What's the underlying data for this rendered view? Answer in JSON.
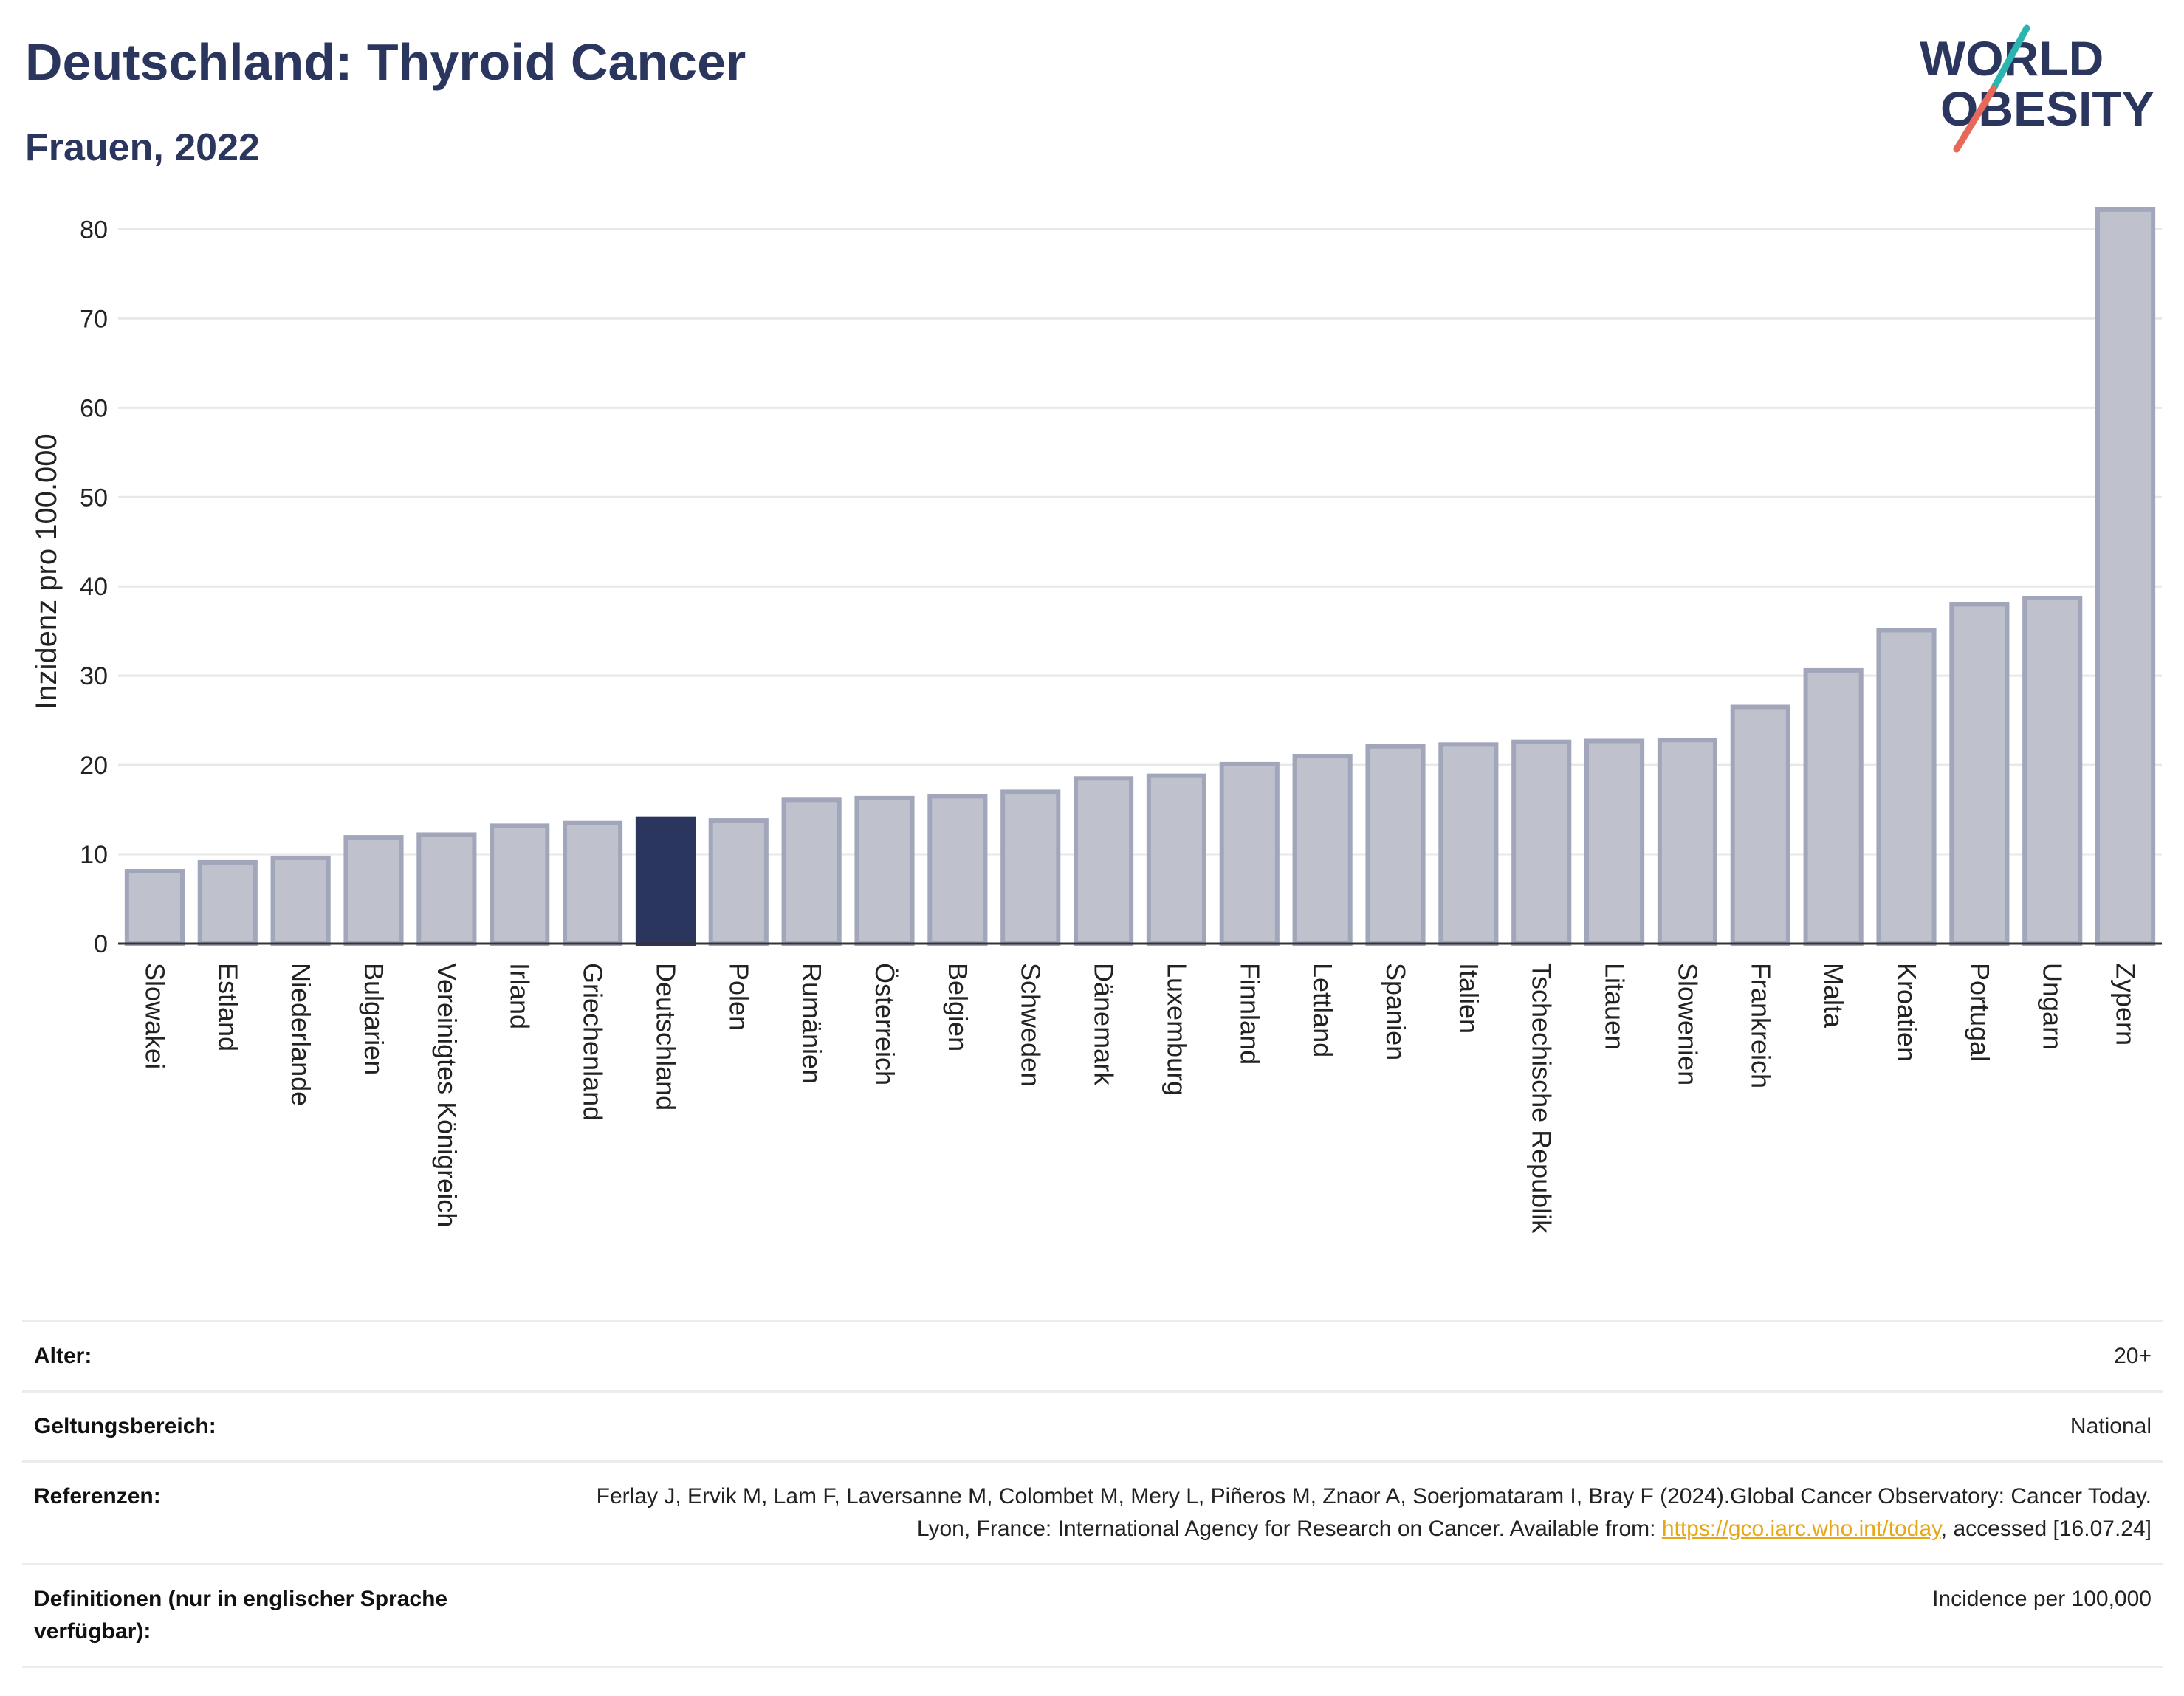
{
  "header": {
    "title": "Deutschland: Thyroid Cancer",
    "subtitle": "Frauen, 2022"
  },
  "logo": {
    "line1": "WORLD",
    "line2": "OBESITY"
  },
  "chart_data": {
    "type": "bar",
    "ylabel": "Inzidenz pro 100.000",
    "ylim": [
      0,
      85
    ],
    "yticks": [
      0,
      10,
      20,
      30,
      40,
      50,
      60,
      70,
      80
    ],
    "grid": true,
    "highlight": "Deutschland",
    "categories": [
      "Slowakei",
      "Estland",
      "Niederlande",
      "Bulgarien",
      "Vereinigtes Königreich",
      "Irland",
      "Griechenland",
      "Deutschland",
      "Polen",
      "Rumänien",
      "Österreich",
      "Belgien",
      "Schweden",
      "Dänemark",
      "Luxemburg",
      "Finnland",
      "Lettland",
      "Spanien",
      "Italien",
      "Tschechische Republik",
      "Litauen",
      "Slowenien",
      "Frankreich",
      "Malta",
      "Kroatien",
      "Portugal",
      "Ungarn",
      "Zypern"
    ],
    "values": [
      8.1,
      9.1,
      9.6,
      11.9,
      12.2,
      13.2,
      13.5,
      14.0,
      13.8,
      16.1,
      16.3,
      16.5,
      17.0,
      18.5,
      18.8,
      20.1,
      21.0,
      22.1,
      22.3,
      22.6,
      22.7,
      22.8,
      26.5,
      30.6,
      35.1,
      38.0,
      38.7,
      82.2
    ],
    "colors": {
      "bar": "#bfc1cd",
      "bar_stroke": "#a2a6bb",
      "highlight": "#2b365f",
      "axis": "#333333",
      "grid": "#e8e8e8"
    }
  },
  "info": {
    "rows": [
      {
        "label": "Alter:",
        "value": "20+"
      },
      {
        "label": "Geltungsbereich:",
        "value": "National"
      },
      {
        "label": "Referenzen:",
        "value_before": "Ferlay J, Ervik M, Lam F, Laversanne M, Colombet M, Mery L, Piñeros M, Znaor A, Soerjomataram I, Bray F (2024).Global Cancer Observatory: Cancer Today. Lyon, France: International Agency for Research on Cancer. Available from: ",
        "link": "https://gco.iarc.who.int/today",
        "value_after": ", accessed [16.07.24]"
      },
      {
        "label": "Definitionen (nur in englischer Sprache verfügbar):",
        "value": "Incidence per 100,000"
      }
    ]
  }
}
